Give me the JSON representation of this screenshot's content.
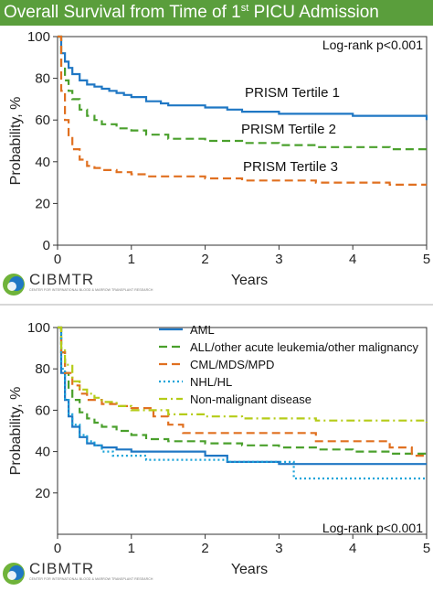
{
  "title": {
    "main": "Overall Survival from Time of 1",
    "sup": "st",
    "rest": " PICU Admission"
  },
  "logo": {
    "name": "CIBMTR",
    "subtitle": "CENTER FOR INTERNATIONAL BLOOD & MARROW TRANSPLANT RESEARCH"
  },
  "chart_data": [
    {
      "type": "line",
      "xlabel": "Years",
      "ylabel": "Probability, %",
      "xlim": [
        0,
        5
      ],
      "ylim": [
        0,
        100
      ],
      "xticks": [
        0,
        1,
        2,
        3,
        4,
        5
      ],
      "yticks": [
        0,
        20,
        40,
        60,
        80,
        100
      ],
      "annotation": "Log-rank p<0.001",
      "grid": false,
      "series": [
        {
          "name": "PRISM Tertile 1",
          "color": "#1f77c4",
          "style": "solid",
          "x": [
            0,
            0.05,
            0.1,
            0.15,
            0.2,
            0.3,
            0.4,
            0.5,
            0.6,
            0.7,
            0.8,
            0.9,
            1.0,
            1.2,
            1.4,
            1.5,
            2.0,
            2.3,
            2.5,
            3.0,
            3.5,
            4.0,
            4.5,
            4.9,
            5.0
          ],
          "y": [
            100,
            92,
            88,
            85,
            82,
            79,
            77,
            76,
            75,
            74,
            73,
            72,
            71,
            69,
            68,
            67,
            66,
            65,
            64,
            63,
            63,
            62,
            62,
            62,
            60
          ]
        },
        {
          "name": "PRISM Tertile 2",
          "color": "#4aa02c",
          "style": "dashed",
          "x": [
            0,
            0.05,
            0.1,
            0.15,
            0.2,
            0.3,
            0.4,
            0.5,
            0.6,
            0.8,
            1.0,
            1.2,
            1.5,
            2.0,
            2.5,
            3.0,
            3.5,
            4.0,
            4.5,
            5.0
          ],
          "y": [
            100,
            86,
            79,
            74,
            70,
            65,
            62,
            60,
            58,
            56,
            55,
            53,
            51,
            50,
            49,
            48,
            47,
            47,
            46,
            46
          ]
        },
        {
          "name": "PRISM Tertile 3",
          "color": "#e07020",
          "style": "dashed",
          "x": [
            0,
            0.05,
            0.1,
            0.15,
            0.2,
            0.3,
            0.4,
            0.5,
            0.6,
            0.8,
            1.0,
            1.2,
            1.5,
            2.0,
            2.5,
            3.0,
            3.5,
            4.0,
            4.5,
            5.0
          ],
          "y": [
            100,
            74,
            60,
            52,
            46,
            41,
            38,
            37,
            36,
            35,
            34,
            33,
            33,
            32,
            31,
            31,
            30,
            30,
            29,
            29
          ]
        }
      ]
    },
    {
      "type": "line",
      "xlabel": "Years",
      "ylabel": "Probability, %",
      "xlim": [
        0,
        5
      ],
      "ylim": [
        0,
        100
      ],
      "xticks": [
        0,
        1,
        2,
        3,
        4,
        5
      ],
      "yticks": [
        20,
        40,
        60,
        80,
        100
      ],
      "annotation": "Log-rank p<0.001",
      "legend": "top-right",
      "grid": false,
      "series": [
        {
          "name": "AML",
          "color": "#1f77c4",
          "style": "solid",
          "x": [
            0,
            0.05,
            0.1,
            0.15,
            0.2,
            0.3,
            0.4,
            0.5,
            0.6,
            0.8,
            1.0,
            1.2,
            1.5,
            2.0,
            2.3,
            2.5,
            3.0,
            3.5,
            4.0,
            4.5,
            5.0
          ],
          "y": [
            100,
            78,
            65,
            57,
            52,
            47,
            44,
            43,
            42,
            41,
            40,
            40,
            40,
            38,
            35,
            35,
            34,
            34,
            34,
            34,
            34
          ]
        },
        {
          "name": "ALL/other acute leukemia/other malignancy",
          "color": "#4aa02c",
          "style": "dashed",
          "x": [
            0,
            0.05,
            0.1,
            0.15,
            0.2,
            0.3,
            0.4,
            0.5,
            0.6,
            0.8,
            1.0,
            1.2,
            1.5,
            2.0,
            2.5,
            3.0,
            3.5,
            4.0,
            4.5,
            5.0
          ],
          "y": [
            100,
            88,
            78,
            70,
            65,
            59,
            56,
            54,
            52,
            50,
            48,
            46,
            45,
            44,
            43,
            42,
            41,
            40,
            39,
            39
          ]
        },
        {
          "name": "CML/MDS/MPD",
          "color": "#e07020",
          "style": "dashed",
          "x": [
            0,
            0.05,
            0.1,
            0.2,
            0.3,
            0.4,
            0.5,
            0.6,
            0.8,
            1.0,
            1.3,
            1.5,
            1.7,
            2.0,
            2.5,
            3.0,
            3.5,
            4.0,
            4.5,
            4.8,
            5.0
          ],
          "y": [
            100,
            88,
            78,
            72,
            68,
            65,
            65,
            63,
            62,
            61,
            57,
            53,
            49,
            49,
            49,
            49,
            45,
            45,
            42,
            38,
            38
          ]
        },
        {
          "name": "NHL/HL",
          "color": "#1aa3d9",
          "style": "dotted",
          "x": [
            0,
            0.05,
            0.1,
            0.15,
            0.2,
            0.3,
            0.4,
            0.5,
            0.6,
            0.75,
            1.0,
            1.2,
            1.5,
            2.0,
            2.3,
            2.5,
            3.0,
            3.2,
            3.5,
            4.0,
            4.5,
            5.0
          ],
          "y": [
            100,
            80,
            65,
            58,
            53,
            48,
            45,
            43,
            40,
            38,
            38,
            36,
            36,
            36,
            35,
            35,
            35,
            27,
            27,
            27,
            27,
            27
          ]
        },
        {
          "name": "Non-malignant disease",
          "color": "#b5cc18",
          "style": "dashdot",
          "x": [
            0,
            0.05,
            0.1,
            0.2,
            0.3,
            0.4,
            0.5,
            0.6,
            0.8,
            1.0,
            1.5,
            2.0,
            2.5,
            3.0,
            3.5,
            4.0,
            4.5,
            5.0
          ],
          "y": [
            100,
            90,
            82,
            74,
            70,
            68,
            66,
            64,
            62,
            60,
            58,
            57,
            56,
            56,
            55,
            55,
            55,
            54
          ]
        }
      ]
    }
  ]
}
